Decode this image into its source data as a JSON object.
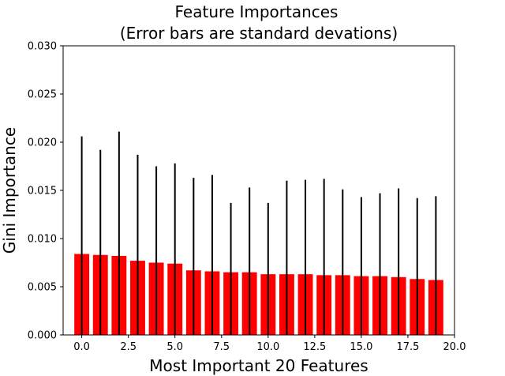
{
  "chart_data": {
    "type": "bar",
    "title": "Feature Importances",
    "subtitle": "(Error bars are standard devations)",
    "xlabel": "Most Important 20 Features",
    "ylabel": "Gini Importance",
    "x": [
      0,
      1,
      2,
      3,
      4,
      5,
      6,
      7,
      8,
      9,
      10,
      11,
      12,
      13,
      14,
      15,
      16,
      17,
      18,
      19
    ],
    "values": [
      0.0084,
      0.0083,
      0.0082,
      0.0077,
      0.0075,
      0.0074,
      0.0067,
      0.0066,
      0.0065,
      0.0065,
      0.0063,
      0.0063,
      0.0063,
      0.0062,
      0.0062,
      0.0061,
      0.0061,
      0.006,
      0.0058,
      0.0057
    ],
    "error_upper": [
      0.0206,
      0.0192,
      0.0211,
      0.0187,
      0.0175,
      0.0178,
      0.0163,
      0.0166,
      0.0137,
      0.0153,
      0.0137,
      0.016,
      0.0161,
      0.0162,
      0.0151,
      0.0143,
      0.0147,
      0.0152,
      0.0142,
      0.0144
    ],
    "xlim": [
      -1.0,
      20.0
    ],
    "ylim": [
      0,
      0.03
    ],
    "xticks": [
      "0.0",
      "2.5",
      "5.0",
      "7.5",
      "10.0",
      "12.5",
      "15.0",
      "17.5",
      "20.0"
    ],
    "yticks": [
      "0.000",
      "0.005",
      "0.010",
      "0.015",
      "0.020",
      "0.025",
      "0.030"
    ],
    "bar_color": "#ff0000",
    "errorbar_color": "#000000",
    "grid": false,
    "legend": false
  }
}
